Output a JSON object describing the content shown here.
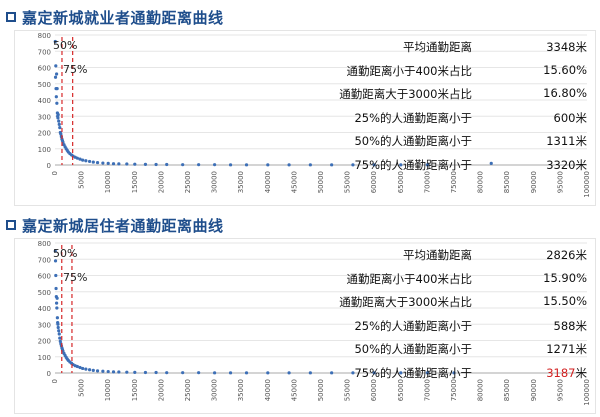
{
  "charts": [
    {
      "title": "嘉定新城就业者通勤距离曲线",
      "stats": [
        {
          "label": "平均通勤距离",
          "value": "3348",
          "unit": "米"
        },
        {
          "label": "通勤距离小于400米占比",
          "value": "15.60%",
          "unit": ""
        },
        {
          "label": "通勤距离大于3000米占比",
          "value": "16.80%",
          "unit": ""
        },
        {
          "label": "25%的人通勤距离小于",
          "value": "600",
          "unit": "米"
        },
        {
          "label": "50%的人通勤距离小于",
          "value": "1311",
          "unit": "米"
        },
        {
          "label": "75%的人通勤距离小于",
          "value": "3320",
          "unit": "米"
        }
      ],
      "markers": [
        {
          "label": "50%",
          "x": 1311
        },
        {
          "label": "75%",
          "x": 3320
        }
      ]
    },
    {
      "title": "嘉定新城居住者通勤距离曲线",
      "stats": [
        {
          "label": "平均通勤距离",
          "value": "2826",
          "unit": "米"
        },
        {
          "label": "通勤距离小于400米占比",
          "value": "15.90%",
          "unit": ""
        },
        {
          "label": "通勤距离大于3000米占比",
          "value": "15.50%",
          "unit": ""
        },
        {
          "label": "25%的人通勤距离小于",
          "value": "588",
          "unit": "米"
        },
        {
          "label": "50%的人通勤距离小于",
          "value": "1271",
          "unit": "米"
        },
        {
          "label": "75%的人通勤距离小于",
          "value": "3187",
          "unit": "米",
          "highlight": true
        }
      ],
      "markers": [
        {
          "label": "50%",
          "x": 1271
        },
        {
          "label": "75%",
          "x": 3187
        }
      ]
    }
  ],
  "chart_data": [
    {
      "type": "scatter",
      "title": "嘉定新城就业者通勤距离曲线",
      "xlim": [
        0,
        100000
      ],
      "ylim": [
        0,
        800
      ],
      "xticks": [
        0,
        5000,
        10000,
        15000,
        20000,
        25000,
        30000,
        35000,
        40000,
        45000,
        50000,
        55000,
        60000,
        65000,
        70000,
        75000,
        80000,
        85000,
        90000,
        95000,
        100000
      ],
      "yticks": [
        0,
        100,
        200,
        300,
        400,
        500,
        600,
        700,
        800
      ],
      "grid": true,
      "point_color": "#3d6fb6",
      "marker_color": "#d62728",
      "points": [
        [
          50,
          760
        ],
        [
          100,
          540
        ],
        [
          150,
          610
        ],
        [
          200,
          470
        ],
        [
          250,
          420
        ],
        [
          300,
          560
        ],
        [
          350,
          380
        ],
        [
          400,
          470
        ],
        [
          450,
          320
        ],
        [
          500,
          300
        ],
        [
          550,
          290
        ],
        [
          600,
          310
        ],
        [
          700,
          270
        ],
        [
          800,
          250
        ],
        [
          900,
          230
        ],
        [
          1000,
          200
        ],
        [
          1100,
          190
        ],
        [
          1200,
          175
        ],
        [
          1300,
          160
        ],
        [
          1400,
          150
        ],
        [
          1500,
          140
        ],
        [
          1700,
          125
        ],
        [
          1900,
          112
        ],
        [
          2100,
          100
        ],
        [
          2300,
          90
        ],
        [
          2500,
          80
        ],
        [
          2800,
          70
        ],
        [
          3100,
          62
        ],
        [
          3400,
          55
        ],
        [
          3800,
          48
        ],
        [
          4200,
          42
        ],
        [
          4700,
          36
        ],
        [
          5200,
          30
        ],
        [
          5800,
          26
        ],
        [
          6500,
          22
        ],
        [
          7200,
          18
        ],
        [
          8000,
          15
        ],
        [
          9000,
          12
        ],
        [
          10000,
          10
        ],
        [
          11000,
          8
        ],
        [
          12000,
          7
        ],
        [
          13500,
          6
        ],
        [
          15000,
          5
        ],
        [
          17000,
          4
        ],
        [
          19000,
          3
        ],
        [
          21000,
          3
        ],
        [
          24000,
          2
        ],
        [
          27000,
          2
        ],
        [
          30000,
          2
        ],
        [
          33000,
          1
        ],
        [
          36000,
          1
        ],
        [
          40000,
          1
        ],
        [
          44000,
          1
        ],
        [
          48000,
          1
        ],
        [
          52000,
          1
        ],
        [
          56000,
          1
        ],
        [
          60000,
          1
        ],
        [
          65000,
          1
        ],
        [
          70000,
          1
        ],
        [
          82000,
          10
        ]
      ]
    },
    {
      "type": "scatter",
      "title": "嘉定新城居住者通勤距离曲线",
      "xlim": [
        0,
        100000
      ],
      "ylim": [
        0,
        800
      ],
      "xticks": [
        0,
        5000,
        10000,
        15000,
        20000,
        25000,
        30000,
        35000,
        40000,
        45000,
        50000,
        55000,
        60000,
        65000,
        70000,
        75000,
        80000,
        85000,
        90000,
        95000,
        100000
      ],
      "yticks": [
        0,
        100,
        200,
        300,
        400,
        500,
        600,
        700,
        800
      ],
      "grid": true,
      "point_color": "#3d6fb6",
      "marker_color": "#d62728",
      "points": [
        [
          50,
          750
        ],
        [
          100,
          690
        ],
        [
          150,
          600
        ],
        [
          200,
          520
        ],
        [
          250,
          470
        ],
        [
          300,
          430
        ],
        [
          350,
          400
        ],
        [
          400,
          460
        ],
        [
          450,
          340
        ],
        [
          500,
          310
        ],
        [
          550,
          300
        ],
        [
          600,
          280
        ],
        [
          700,
          260
        ],
        [
          800,
          240
        ],
        [
          900,
          215
        ],
        [
          1000,
          195
        ],
        [
          1100,
          180
        ],
        [
          1200,
          168
        ],
        [
          1300,
          155
        ],
        [
          1400,
          145
        ],
        [
          1500,
          135
        ],
        [
          1700,
          120
        ],
        [
          1900,
          108
        ],
        [
          2100,
          96
        ],
        [
          2300,
          86
        ],
        [
          2500,
          78
        ],
        [
          2800,
          68
        ],
        [
          3100,
          60
        ],
        [
          3400,
          52
        ],
        [
          3800,
          45
        ],
        [
          4200,
          40
        ],
        [
          4700,
          34
        ],
        [
          5200,
          28
        ],
        [
          5800,
          24
        ],
        [
          6500,
          20
        ],
        [
          7200,
          16
        ],
        [
          8000,
          13
        ],
        [
          9000,
          11
        ],
        [
          10000,
          9
        ],
        [
          11000,
          7
        ],
        [
          12000,
          6
        ],
        [
          13500,
          5
        ],
        [
          15000,
          4
        ],
        [
          17000,
          3
        ],
        [
          19000,
          3
        ],
        [
          21000,
          2
        ],
        [
          24000,
          2
        ],
        [
          27000,
          2
        ],
        [
          30000,
          1
        ],
        [
          33000,
          1
        ],
        [
          36000,
          1
        ],
        [
          40000,
          1
        ],
        [
          44000,
          1
        ],
        [
          48000,
          1
        ],
        [
          52000,
          1
        ],
        [
          56000,
          1
        ],
        [
          60000,
          1
        ],
        [
          65000,
          1
        ],
        [
          70000,
          1
        ],
        [
          75000,
          1
        ]
      ]
    }
  ]
}
